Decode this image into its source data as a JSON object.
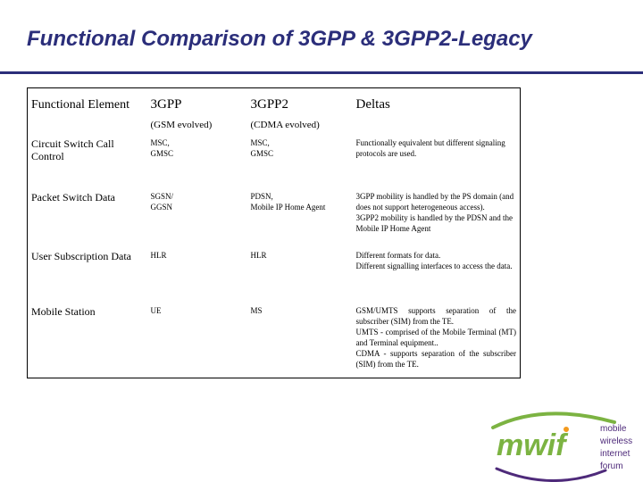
{
  "slide": {
    "title": "Functional Comparison of 3GPP & 3GPP2-Legacy"
  },
  "table": {
    "header": {
      "col1": "Functional Element",
      "col2_top": "3GPP",
      "col2_sub": "(GSM evolved)",
      "col3_top": "3GPP2",
      "col3_sub": "(CDMA evolved)",
      "col4": "Deltas"
    },
    "rows": [
      {
        "element": "Circuit Switch Call Control",
        "gpp": [
          "MSC,",
          "GMSC"
        ],
        "gpp2": [
          "MSC,",
          "GMSC"
        ],
        "deltas": [
          "Functionally equivalent but different signaling protocols are used."
        ]
      },
      {
        "element": "Packet Switch Data",
        "gpp": [
          "SGSN/",
          "GGSN"
        ],
        "gpp2": [
          "PDSN,",
          "Mobile IP Home Agent"
        ],
        "deltas": [
          "3GPP mobility is handled by the PS domain (and does not support heterogeneous access).",
          "3GPP2 mobility is handled by the PDSN and the Mobile IP Home Agent"
        ]
      },
      {
        "element": "User Subscription Data",
        "gpp": [
          "HLR"
        ],
        "gpp2": [
          "HLR"
        ],
        "deltas": [
          "Different formats for data.",
          "Different signalling interfaces to access the data."
        ]
      },
      {
        "element": "Mobile Station",
        "gpp": [
          "UE"
        ],
        "gpp2": [
          "MS"
        ],
        "deltas": [
          "GSM/UMTS supports separation of the subscriber (SIM) from the TE.",
          "UMTS - comprised of the Mobile Terminal (MT) and Terminal equipment..",
          "CDMA - supports separation of the subscriber (SIM) from the TE."
        ]
      }
    ]
  },
  "logo": {
    "wordmark": "mwif",
    "lines": [
      "mobile",
      "wireless",
      "internet",
      "forum"
    ],
    "colors": {
      "green": "#7cb342",
      "purple": "#4e2a7a",
      "orange": "#f39a1e"
    }
  }
}
